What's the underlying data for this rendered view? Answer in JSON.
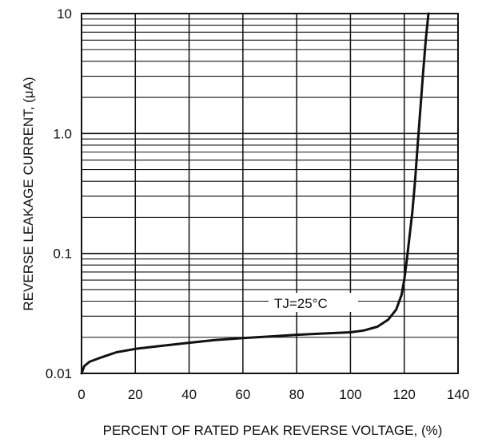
{
  "chart_data": {
    "type": "line",
    "title": "",
    "xlabel": "PERCENT OF RATED PEAK REVERSE VOLTAGE, (%)",
    "ylabel": "REVERSE LEAKAGE CURRENT, (μA)",
    "xlim": [
      0,
      140
    ],
    "ylim": [
      0.01,
      10
    ],
    "yscale": "log",
    "grid": true,
    "xticks": [
      0,
      20,
      40,
      60,
      80,
      100,
      120,
      140
    ],
    "xtick_labels": [
      "0",
      "20",
      "40",
      "60",
      "80",
      "100",
      "120",
      "140"
    ],
    "yticks": [
      0.01,
      0.1,
      1.0,
      10
    ],
    "ytick_labels": [
      "0.01",
      "0.1",
      "1.0",
      "10"
    ],
    "annotation": "TJ=25°C",
    "series": [
      {
        "color": "#111111",
        "x": [
          0,
          1,
          3,
          7,
          13,
          20,
          30,
          40,
          50,
          60,
          70,
          80,
          90,
          100,
          105,
          110,
          114,
          117,
          119,
          120,
          121,
          122,
          123,
          124,
          125,
          126,
          127,
          128,
          129
        ],
        "y": [
          0.01,
          0.0115,
          0.0125,
          0.0135,
          0.015,
          0.016,
          0.017,
          0.018,
          0.019,
          0.0197,
          0.0203,
          0.021,
          0.0215,
          0.022,
          0.0228,
          0.0245,
          0.028,
          0.034,
          0.045,
          0.06,
          0.09,
          0.14,
          0.22,
          0.4,
          0.8,
          1.6,
          3.2,
          6.0,
          10.0
        ]
      }
    ]
  }
}
